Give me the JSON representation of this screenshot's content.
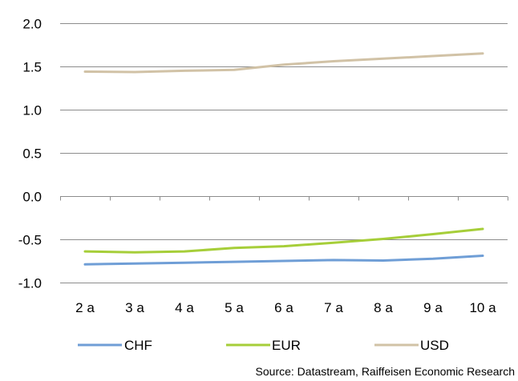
{
  "chart_data": {
    "type": "line",
    "title": "",
    "xlabel": "",
    "ylabel": "",
    "categories": [
      "2 a",
      "3 a",
      "4 a",
      "5 a",
      "6 a",
      "7 a",
      "8 a",
      "9 a",
      "10 a"
    ],
    "y_ticks": [
      "2.0",
      "1.5",
      "1.0",
      "0.5",
      "0.0",
      "-0.5",
      "-1.0"
    ],
    "ylim": [
      -1.0,
      2.0
    ],
    "grid": "horizontal",
    "legend_position": "bottom",
    "series": [
      {
        "name": "CHF",
        "color": "#6F9ED6",
        "values": [
          -0.79,
          -0.78,
          -0.77,
          -0.76,
          -0.75,
          -0.74,
          -0.745,
          -0.725,
          -0.69
        ]
      },
      {
        "name": "EUR",
        "color": "#A6CE39",
        "values": [
          -0.64,
          -0.65,
          -0.64,
          -0.6,
          -0.58,
          -0.54,
          -0.495,
          -0.44,
          -0.38
        ]
      },
      {
        "name": "USD",
        "color": "#D1C2A6",
        "values": [
          1.44,
          1.435,
          1.45,
          1.46,
          1.52,
          1.56,
          1.59,
          1.62,
          1.65
        ]
      }
    ]
  },
  "source": "Source: Datastream, Raiffeisen Economic Research"
}
